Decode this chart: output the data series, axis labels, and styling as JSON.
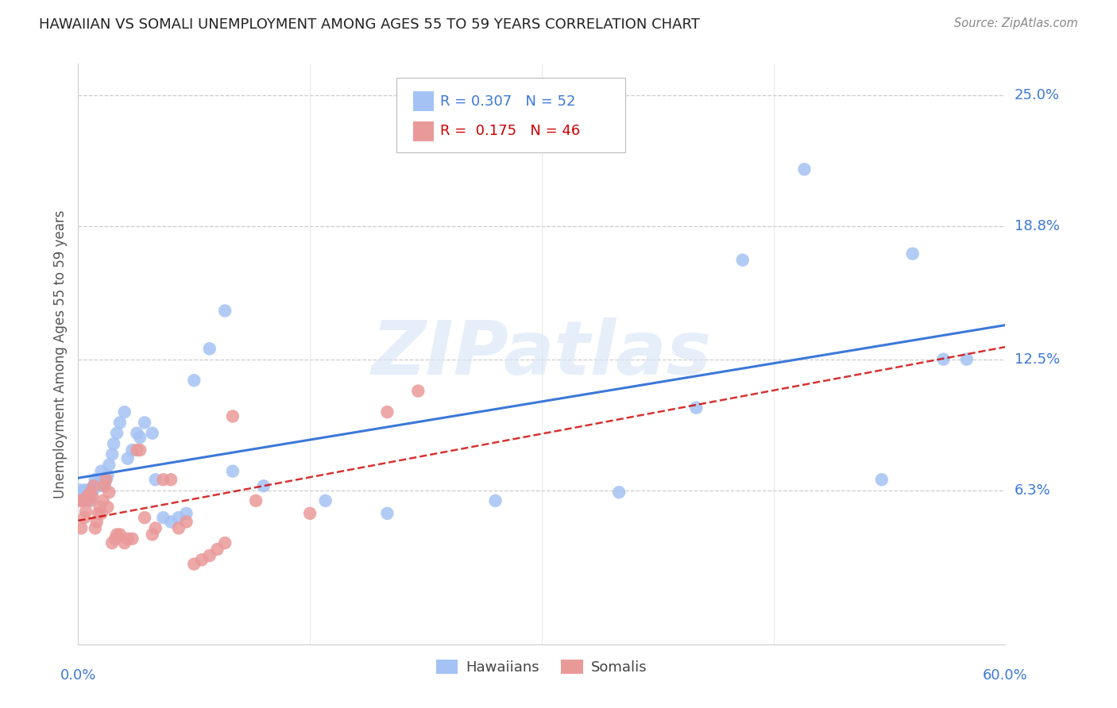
{
  "title": "HAWAIIAN VS SOMALI UNEMPLOYMENT AMONG AGES 55 TO 59 YEARS CORRELATION CHART",
  "source": "Source: ZipAtlas.com",
  "ylabel": "Unemployment Among Ages 55 to 59 years",
  "xlim": [
    0.0,
    0.6
  ],
  "ylim": [
    -0.01,
    0.265
  ],
  "yticks": [
    0.0,
    0.063,
    0.125,
    0.188,
    0.25
  ],
  "ytick_labels": [
    "",
    "6.3%",
    "12.5%",
    "18.8%",
    "25.0%"
  ],
  "xtick_labels": [
    "0.0%",
    "60.0%"
  ],
  "xtick_vals": [
    0.0,
    0.6
  ],
  "hawaiian_color": "#a4c2f4",
  "somali_color": "#ea9999",
  "trend_hawaiian_color": "#3c78d8",
  "trend_somali_color": "#cc0000",
  "R_hawaiian": 0.307,
  "N_hawaiian": 52,
  "R_somali": 0.175,
  "N_somali": 46,
  "hawaiian_x": [
    0.001,
    0.002,
    0.003,
    0.004,
    0.005,
    0.006,
    0.007,
    0.008,
    0.009,
    0.01,
    0.011,
    0.012,
    0.013,
    0.014,
    0.015,
    0.016,
    0.017,
    0.018,
    0.019,
    0.02,
    0.022,
    0.023,
    0.025,
    0.027,
    0.03,
    0.032,
    0.035,
    0.038,
    0.04,
    0.043,
    0.048,
    0.05,
    0.055,
    0.06,
    0.065,
    0.07,
    0.075,
    0.085,
    0.095,
    0.1,
    0.12,
    0.16,
    0.2,
    0.27,
    0.35,
    0.4,
    0.43,
    0.47,
    0.52,
    0.54,
    0.56,
    0.575
  ],
  "hawaiian_y": [
    0.063,
    0.06,
    0.058,
    0.063,
    0.06,
    0.063,
    0.06,
    0.058,
    0.062,
    0.065,
    0.068,
    0.065,
    0.065,
    0.068,
    0.072,
    0.068,
    0.065,
    0.068,
    0.07,
    0.075,
    0.08,
    0.085,
    0.09,
    0.095,
    0.1,
    0.078,
    0.082,
    0.09,
    0.088,
    0.095,
    0.09,
    0.068,
    0.05,
    0.048,
    0.05,
    0.052,
    0.115,
    0.13,
    0.148,
    0.072,
    0.065,
    0.058,
    0.052,
    0.058,
    0.062,
    0.102,
    0.172,
    0.215,
    0.068,
    0.175,
    0.125,
    0.125
  ],
  "somali_x": [
    0.001,
    0.002,
    0.003,
    0.004,
    0.005,
    0.006,
    0.007,
    0.008,
    0.009,
    0.01,
    0.011,
    0.012,
    0.013,
    0.014,
    0.015,
    0.016,
    0.017,
    0.018,
    0.019,
    0.02,
    0.022,
    0.024,
    0.025,
    0.027,
    0.03,
    0.032,
    0.035,
    0.038,
    0.04,
    0.043,
    0.048,
    0.05,
    0.055,
    0.06,
    0.065,
    0.07,
    0.075,
    0.08,
    0.085,
    0.09,
    0.095,
    0.1,
    0.115,
    0.15,
    0.2,
    0.22
  ],
  "somali_y": [
    0.058,
    0.045,
    0.058,
    0.05,
    0.053,
    0.06,
    0.058,
    0.062,
    0.06,
    0.065,
    0.045,
    0.048,
    0.052,
    0.055,
    0.052,
    0.058,
    0.065,
    0.068,
    0.055,
    0.062,
    0.038,
    0.04,
    0.042,
    0.042,
    0.038,
    0.04,
    0.04,
    0.082,
    0.082,
    0.05,
    0.042,
    0.045,
    0.068,
    0.068,
    0.045,
    0.048,
    0.028,
    0.03,
    0.032,
    0.035,
    0.038,
    0.098,
    0.058,
    0.052,
    0.1,
    0.11
  ],
  "watermark_text": "ZIPatlas",
  "grid_color": "#cccccc",
  "background_color": "#ffffff",
  "axis_label_color": "#3c78d8",
  "title_color": "#222222",
  "ylabel_color": "#555555"
}
